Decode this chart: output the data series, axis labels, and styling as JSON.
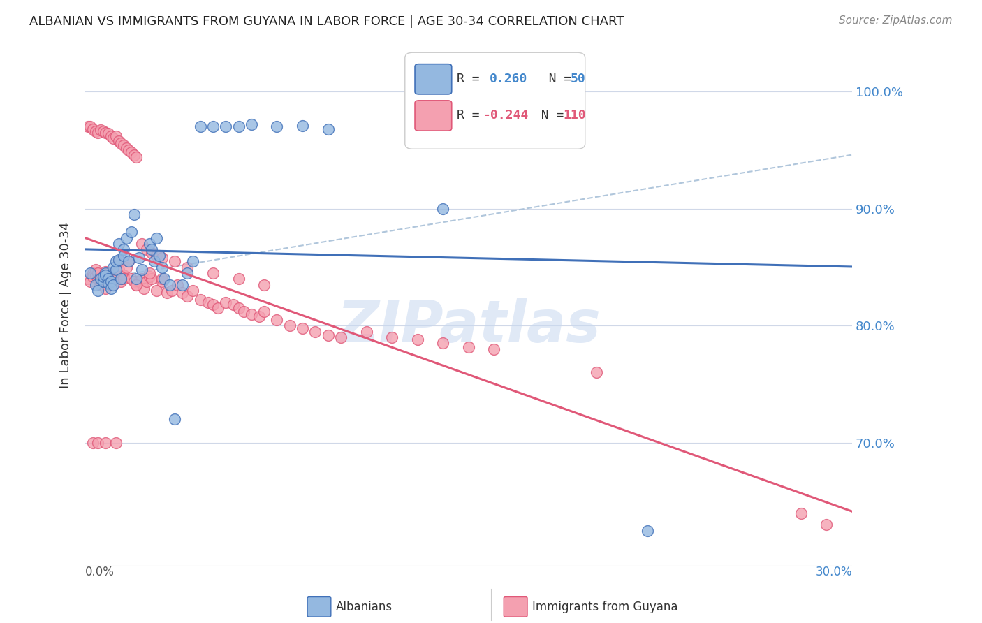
{
  "title": "ALBANIAN VS IMMIGRANTS FROM GUYANA IN LABOR FORCE | AGE 30-34 CORRELATION CHART",
  "source": "Source: ZipAtlas.com",
  "ylabel": "In Labor Force | Age 30-34",
  "ytick_values": [
    0.7,
    0.8,
    0.9,
    1.0
  ],
  "xlim": [
    0.0,
    0.3
  ],
  "ylim": [
    0.595,
    1.04
  ],
  "legend_r_albanian": "0.260",
  "legend_n_albanian": "50",
  "legend_r_guyana": "-0.244",
  "legend_n_guyana": "110",
  "color_albanian": "#94b8e0",
  "color_guyana": "#f4a0b0",
  "color_line_albanian": "#4070b8",
  "color_line_guyana": "#e05878",
  "color_trendline_dashed": "#a8c0d8",
  "watermark": "ZIPatlas",
  "albanian_x": [
    0.002,
    0.004,
    0.005,
    0.006,
    0.007,
    0.007,
    0.008,
    0.008,
    0.009,
    0.009,
    0.01,
    0.01,
    0.011,
    0.011,
    0.012,
    0.012,
    0.013,
    0.013,
    0.014,
    0.015,
    0.015,
    0.016,
    0.017,
    0.018,
    0.019,
    0.02,
    0.021,
    0.022,
    0.025,
    0.026,
    0.027,
    0.028,
    0.029,
    0.03,
    0.031,
    0.033,
    0.035,
    0.038,
    0.04,
    0.042,
    0.045,
    0.05,
    0.055,
    0.06,
    0.065,
    0.075,
    0.085,
    0.095,
    0.14,
    0.22
  ],
  "albanian_y": [
    0.845,
    0.835,
    0.83,
    0.84,
    0.838,
    0.842,
    0.845,
    0.843,
    0.84,
    0.836,
    0.838,
    0.832,
    0.85,
    0.835,
    0.848,
    0.855,
    0.856,
    0.87,
    0.84,
    0.865,
    0.86,
    0.875,
    0.855,
    0.88,
    0.895,
    0.84,
    0.858,
    0.848,
    0.87,
    0.865,
    0.855,
    0.875,
    0.86,
    0.85,
    0.84,
    0.835,
    0.72,
    0.835,
    0.845,
    0.855,
    0.97,
    0.97,
    0.97,
    0.97,
    0.972,
    0.97,
    0.971,
    0.968,
    0.9,
    0.625
  ],
  "guyana_x": [
    0.001,
    0.002,
    0.003,
    0.003,
    0.004,
    0.004,
    0.005,
    0.005,
    0.006,
    0.006,
    0.007,
    0.007,
    0.008,
    0.008,
    0.008,
    0.009,
    0.009,
    0.01,
    0.01,
    0.011,
    0.011,
    0.012,
    0.012,
    0.013,
    0.013,
    0.014,
    0.015,
    0.015,
    0.016,
    0.017,
    0.018,
    0.019,
    0.02,
    0.021,
    0.022,
    0.023,
    0.024,
    0.025,
    0.026,
    0.028,
    0.03,
    0.032,
    0.034,
    0.036,
    0.038,
    0.04,
    0.042,
    0.045,
    0.048,
    0.05,
    0.052,
    0.055,
    0.058,
    0.06,
    0.062,
    0.065,
    0.068,
    0.07,
    0.075,
    0.08,
    0.085,
    0.09,
    0.095,
    0.1,
    0.11,
    0.12,
    0.13,
    0.14,
    0.15,
    0.16,
    0.001,
    0.002,
    0.003,
    0.004,
    0.005,
    0.006,
    0.007,
    0.008,
    0.009,
    0.01,
    0.011,
    0.012,
    0.013,
    0.014,
    0.015,
    0.016,
    0.017,
    0.018,
    0.019,
    0.02,
    0.022,
    0.024,
    0.026,
    0.028,
    0.03,
    0.035,
    0.04,
    0.05,
    0.06,
    0.07,
    0.003,
    0.005,
    0.008,
    0.012,
    0.02,
    0.025,
    0.03,
    0.2,
    0.28,
    0.29
  ],
  "guyana_y": [
    0.84,
    0.838,
    0.845,
    0.842,
    0.843,
    0.848,
    0.84,
    0.845,
    0.838,
    0.835,
    0.84,
    0.842,
    0.838,
    0.832,
    0.846,
    0.838,
    0.845,
    0.84,
    0.835,
    0.84,
    0.835,
    0.842,
    0.84,
    0.855,
    0.848,
    0.838,
    0.843,
    0.84,
    0.85,
    0.855,
    0.84,
    0.838,
    0.835,
    0.838,
    0.84,
    0.832,
    0.838,
    0.842,
    0.84,
    0.83,
    0.838,
    0.828,
    0.83,
    0.835,
    0.828,
    0.825,
    0.83,
    0.822,
    0.82,
    0.818,
    0.815,
    0.82,
    0.818,
    0.815,
    0.812,
    0.81,
    0.808,
    0.812,
    0.805,
    0.8,
    0.798,
    0.795,
    0.792,
    0.79,
    0.795,
    0.79,
    0.788,
    0.785,
    0.782,
    0.78,
    0.97,
    0.97,
    0.968,
    0.966,
    0.965,
    0.967,
    0.966,
    0.965,
    0.964,
    0.962,
    0.96,
    0.962,
    0.958,
    0.956,
    0.954,
    0.952,
    0.95,
    0.948,
    0.946,
    0.944,
    0.87,
    0.865,
    0.862,
    0.86,
    0.858,
    0.855,
    0.85,
    0.845,
    0.84,
    0.835,
    0.7,
    0.7,
    0.7,
    0.7,
    0.835,
    0.845,
    0.84,
    0.76,
    0.64,
    0.63
  ]
}
